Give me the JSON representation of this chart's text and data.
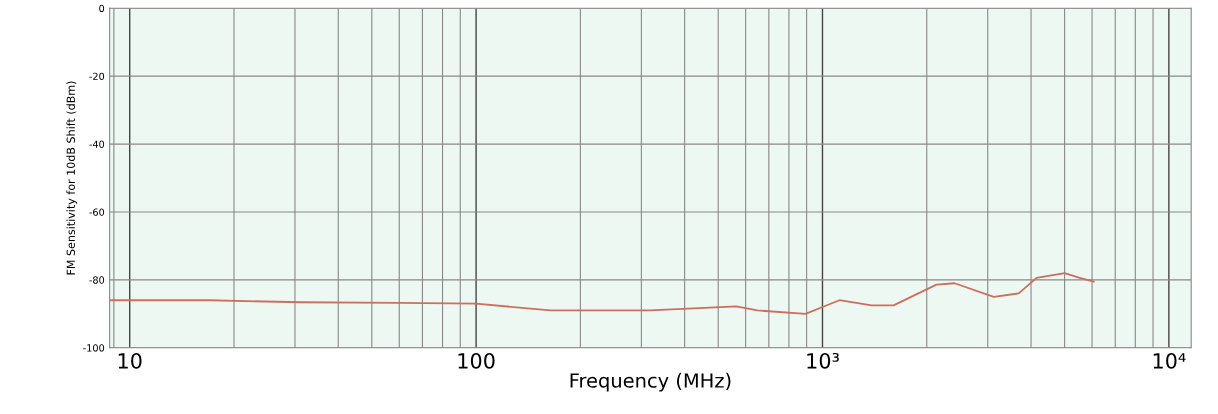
{
  "chart_data": {
    "type": "line",
    "xlabel": "Frequency (MHz)",
    "ylabel": "FM Sensitivity for 10dB Shift (dBm)",
    "log": "x",
    "grid": true,
    "marker": "none",
    "line_style": "solid",
    "x": [
      8.75,
      17,
      31,
      60,
      100,
      164,
      318,
      564,
      649,
      893,
      1000,
      1119,
      1386,
      1604,
      2133,
      2408,
      3122,
      3684,
      4152,
      5003,
      5530,
      6070
    ],
    "series": [
      {
        "color": "#cc6f5c",
        "values": [
          -86,
          -86,
          -86.6,
          -86.8,
          -87,
          -89,
          -89,
          -87.8,
          -89,
          -90,
          -88,
          -86,
          -87.5,
          -87.5,
          -81.4,
          -81,
          -85,
          -84,
          -79.4,
          -78,
          -79.4,
          -80.5
        ]
      }
    ],
    "xlim": [
      8.75,
      11600
    ],
    "ylim": [
      -100,
      0
    ],
    "xticks": [
      {
        "value": 10,
        "label": "10"
      },
      {
        "value": 100,
        "label": "100"
      },
      {
        "value": 1000,
        "label": "10³"
      },
      {
        "value": 10000,
        "label": "10⁴"
      }
    ],
    "yticks": [
      0,
      -20,
      -40,
      -60,
      -80,
      -100
    ]
  }
}
